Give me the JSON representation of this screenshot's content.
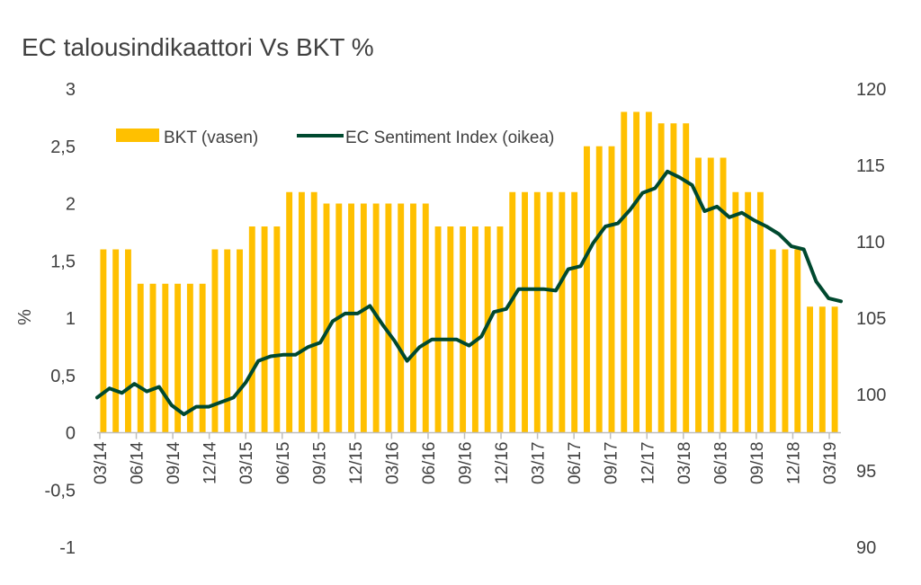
{
  "chart_data": {
    "type": "bar+line",
    "title": "EC talousindikaattori Vs BKT %",
    "ylabel": "%",
    "y2label": "",
    "ylim": [
      -1,
      3
    ],
    "yticks": [
      -1,
      -0.5,
      0,
      0.5,
      1,
      1.5,
      2,
      2.5,
      3
    ],
    "ytick_labels": [
      "-1",
      "-0,5",
      "0",
      "0,5",
      "1",
      "1,5",
      "2",
      "2,5",
      "3"
    ],
    "y2lim": [
      90,
      120
    ],
    "y2ticks": [
      90,
      95,
      100,
      105,
      110,
      115,
      120
    ],
    "y2tick_labels": [
      "90",
      "95",
      "100",
      "105",
      "110",
      "115",
      "120"
    ],
    "xtick_labels": [
      "03/14",
      "06/14",
      "09/14",
      "12/14",
      "03/15",
      "06/15",
      "09/15",
      "12/15",
      "03/16",
      "06/16",
      "09/16",
      "12/16",
      "03/17",
      "06/17",
      "09/17",
      "12/17",
      "03/18",
      "06/18",
      "09/18",
      "12/18",
      "03/19"
    ],
    "legend": {
      "position": "top",
      "entries": [
        "BKT (vasen)",
        "EC Sentiment Index (oikea)"
      ]
    },
    "series": [
      {
        "name": "BKT (vasen)",
        "type": "bar",
        "axis": "left",
        "color": "#FFC000",
        "values": [
          1.6,
          1.6,
          1.6,
          1.3,
          1.3,
          1.3,
          1.3,
          1.3,
          1.3,
          1.6,
          1.6,
          1.6,
          1.8,
          1.8,
          1.8,
          2.1,
          2.1,
          2.1,
          2.0,
          2.0,
          2.0,
          2.0,
          2.0,
          2.0,
          2.0,
          2.0,
          2.0,
          1.8,
          1.8,
          1.8,
          1.8,
          1.8,
          1.8,
          2.1,
          2.1,
          2.1,
          2.1,
          2.1,
          2.1,
          2.5,
          2.5,
          2.5,
          2.8,
          2.8,
          2.8,
          2.7,
          2.7,
          2.7,
          2.4,
          2.4,
          2.4,
          2.1,
          2.1,
          2.1,
          1.6,
          1.6,
          1.6,
          1.1,
          1.1,
          1.1
        ]
      },
      {
        "name": "EC Sentiment Index (oikea)",
        "type": "line",
        "axis": "right",
        "color": "#00492F",
        "values": [
          99.8,
          100.4,
          100.1,
          100.7,
          100.2,
          100.5,
          99.3,
          98.7,
          99.2,
          99.2,
          99.5,
          99.8,
          100.8,
          102.2,
          102.5,
          102.6,
          102.6,
          103.1,
          103.4,
          104.8,
          105.3,
          105.3,
          105.8,
          104.6,
          103.5,
          102.2,
          103.1,
          103.6,
          103.6,
          103.6,
          103.2,
          103.8,
          105.4,
          105.6,
          106.9,
          106.9,
          106.9,
          106.8,
          108.2,
          108.4,
          109.9,
          111.0,
          111.2,
          112.1,
          113.2,
          113.5,
          114.6,
          114.2,
          113.7,
          112.0,
          112.3,
          111.6,
          111.9,
          111.4,
          111.0,
          110.5,
          109.7,
          109.5,
          107.4,
          106.3,
          106.1
        ]
      }
    ]
  }
}
